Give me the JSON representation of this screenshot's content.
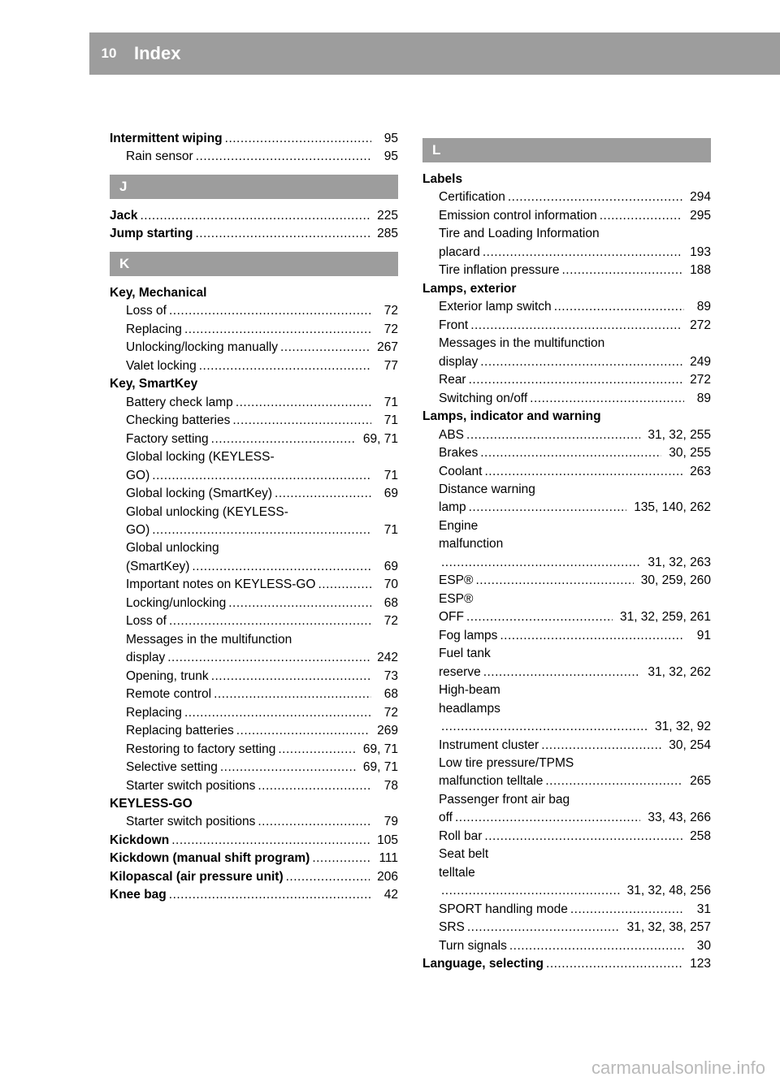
{
  "header": {
    "page_number": "10",
    "title": "Index"
  },
  "watermark": "carmanualsonline.info",
  "left": {
    "top": [
      {
        "bold": true,
        "sub": false,
        "label": "Intermittent wiping",
        "page": "95"
      },
      {
        "bold": false,
        "sub": true,
        "label": "Rain sensor",
        "page": "95"
      }
    ],
    "J": {
      "letter": "J",
      "rows": [
        {
          "bold": true,
          "sub": false,
          "label": "Jack",
          "page": "225"
        },
        {
          "bold": true,
          "sub": false,
          "label": "Jump starting",
          "page": "285"
        }
      ]
    },
    "K": {
      "letter": "K",
      "rows": [
        {
          "bold": true,
          "sub": false,
          "label": "Key, Mechanical",
          "page": ""
        },
        {
          "bold": false,
          "sub": true,
          "label": "Loss of",
          "page": "72"
        },
        {
          "bold": false,
          "sub": true,
          "label": "Replacing",
          "page": "72"
        },
        {
          "bold": false,
          "sub": true,
          "label": "Unlocking/locking manually",
          "page": "267"
        },
        {
          "bold": false,
          "sub": true,
          "label": "Valet locking",
          "page": "77"
        },
        {
          "bold": true,
          "sub": false,
          "label": "Key, SmartKey",
          "page": ""
        },
        {
          "bold": false,
          "sub": true,
          "label": "Battery check lamp",
          "page": "71"
        },
        {
          "bold": false,
          "sub": true,
          "label": "Checking batteries",
          "page": "71"
        },
        {
          "bold": false,
          "sub": true,
          "label": "Factory setting",
          "page": "69, 71"
        },
        {
          "bold": false,
          "sub": true,
          "label": "Global locking (KEYLESS-",
          "page": "",
          "cont": true
        },
        {
          "bold": false,
          "sub": true,
          "label": "GO)",
          "page": "71"
        },
        {
          "bold": false,
          "sub": true,
          "label": "Global locking (SmartKey)",
          "page": "69"
        },
        {
          "bold": false,
          "sub": true,
          "label": "Global unlocking (KEYLESS-",
          "page": "",
          "cont": true
        },
        {
          "bold": false,
          "sub": true,
          "label": "GO)",
          "page": "71"
        },
        {
          "bold": false,
          "sub": true,
          "label": "Global unlocking",
          "page": "",
          "cont": true
        },
        {
          "bold": false,
          "sub": true,
          "label": "(SmartKey)",
          "page": "69"
        },
        {
          "bold": false,
          "sub": true,
          "label": "Important notes on KEYLESS-GO",
          "page": "70"
        },
        {
          "bold": false,
          "sub": true,
          "label": "Locking/unlocking",
          "page": "68"
        },
        {
          "bold": false,
          "sub": true,
          "label": "Loss of",
          "page": "72"
        },
        {
          "bold": false,
          "sub": true,
          "label": "Messages in the multifunction",
          "page": "",
          "cont": true
        },
        {
          "bold": false,
          "sub": true,
          "label": "display",
          "page": "242"
        },
        {
          "bold": false,
          "sub": true,
          "label": "Opening, trunk",
          "page": "73"
        },
        {
          "bold": false,
          "sub": true,
          "label": "Remote control",
          "page": "68"
        },
        {
          "bold": false,
          "sub": true,
          "label": "Replacing",
          "page": "72"
        },
        {
          "bold": false,
          "sub": true,
          "label": "Replacing batteries",
          "page": "269"
        },
        {
          "bold": false,
          "sub": true,
          "label": "Restoring to factory setting",
          "page": "69, 71"
        },
        {
          "bold": false,
          "sub": true,
          "label": "Selective setting",
          "page": "69, 71"
        },
        {
          "bold": false,
          "sub": true,
          "label": "Starter switch positions",
          "page": "78"
        },
        {
          "bold": true,
          "sub": false,
          "label": "KEYLESS-GO",
          "page": ""
        },
        {
          "bold": false,
          "sub": true,
          "label": "Starter switch positions",
          "page": "79"
        },
        {
          "bold": true,
          "sub": false,
          "label": "Kickdown",
          "page": "105"
        },
        {
          "bold": true,
          "sub": false,
          "label": "Kickdown (manual shift program)",
          "page": "111"
        },
        {
          "bold": true,
          "sub": false,
          "label": "Kilopascal (air pressure unit)",
          "page": "206"
        },
        {
          "bold": true,
          "sub": false,
          "label": "Knee bag",
          "page": "42"
        }
      ]
    }
  },
  "right": {
    "L": {
      "letter": "L",
      "rows": [
        {
          "bold": true,
          "sub": false,
          "label": "Labels",
          "page": ""
        },
        {
          "bold": false,
          "sub": true,
          "label": "Certification",
          "page": "294"
        },
        {
          "bold": false,
          "sub": true,
          "label": "Emission control information",
          "page": "295"
        },
        {
          "bold": false,
          "sub": true,
          "label": "Tire and Loading Information",
          "page": "",
          "cont": true
        },
        {
          "bold": false,
          "sub": true,
          "label": "placard",
          "page": "193"
        },
        {
          "bold": false,
          "sub": true,
          "label": "Tire inflation pressure",
          "page": "188"
        },
        {
          "bold": true,
          "sub": false,
          "label": "Lamps, exterior",
          "page": ""
        },
        {
          "bold": false,
          "sub": true,
          "label": "Exterior lamp switch",
          "page": "89"
        },
        {
          "bold": false,
          "sub": true,
          "label": "Front",
          "page": "272"
        },
        {
          "bold": false,
          "sub": true,
          "label": "Messages in the multifunction",
          "page": "",
          "cont": true
        },
        {
          "bold": false,
          "sub": true,
          "label": "display",
          "page": "249"
        },
        {
          "bold": false,
          "sub": true,
          "label": "Rear",
          "page": "272"
        },
        {
          "bold": false,
          "sub": true,
          "label": "Switching on/off",
          "page": "89"
        },
        {
          "bold": true,
          "sub": false,
          "label": "Lamps, indicator and warning",
          "page": ""
        },
        {
          "bold": false,
          "sub": true,
          "label": "ABS",
          "page": "31, 32, 255"
        },
        {
          "bold": false,
          "sub": true,
          "label": "Brakes",
          "page": "30, 255"
        },
        {
          "bold": false,
          "sub": true,
          "label": "Coolant",
          "page": "263"
        },
        {
          "bold": false,
          "sub": true,
          "label": "Distance warning",
          "page": "",
          "cont": true
        },
        {
          "bold": false,
          "sub": true,
          "label": "lamp",
          "page": "135, 140, 262"
        },
        {
          "bold": false,
          "sub": true,
          "label": "Engine",
          "page": "",
          "cont": true
        },
        {
          "bold": false,
          "sub": true,
          "label": "malfunction",
          "page": "",
          "cont": true
        },
        {
          "bold": false,
          "sub": true,
          "label": "",
          "page": "31, 32, 263"
        },
        {
          "bold": false,
          "sub": true,
          "label": "ESP®",
          "page": "30, 259, 260"
        },
        {
          "bold": false,
          "sub": true,
          "label": "ESP®",
          "page": "",
          "cont": true
        },
        {
          "bold": false,
          "sub": true,
          "label": "OFF",
          "page": "31, 32, 259, 261"
        },
        {
          "bold": false,
          "sub": true,
          "label": "Fog lamps",
          "page": "91"
        },
        {
          "bold": false,
          "sub": true,
          "label": "Fuel tank",
          "page": "",
          "cont": true
        },
        {
          "bold": false,
          "sub": true,
          "label": "reserve",
          "page": "31, 32, 262"
        },
        {
          "bold": false,
          "sub": true,
          "label": "High-beam",
          "page": "",
          "cont": true
        },
        {
          "bold": false,
          "sub": true,
          "label": "headlamps",
          "page": "",
          "cont": true
        },
        {
          "bold": false,
          "sub": true,
          "label": "",
          "page": "31, 32, 92"
        },
        {
          "bold": false,
          "sub": true,
          "label": "Instrument cluster",
          "page": "30, 254"
        },
        {
          "bold": false,
          "sub": true,
          "label": "Low tire pressure/TPMS",
          "page": "",
          "cont": true
        },
        {
          "bold": false,
          "sub": true,
          "label": "malfunction telltale",
          "page": "265"
        },
        {
          "bold": false,
          "sub": true,
          "label": "Passenger front air bag",
          "page": "",
          "cont": true
        },
        {
          "bold": false,
          "sub": true,
          "label": "off",
          "page": "33, 43, 266"
        },
        {
          "bold": false,
          "sub": true,
          "label": "Roll bar",
          "page": "258"
        },
        {
          "bold": false,
          "sub": true,
          "label": "Seat belt",
          "page": "",
          "cont": true
        },
        {
          "bold": false,
          "sub": true,
          "label": "telltale",
          "page": "",
          "cont": true
        },
        {
          "bold": false,
          "sub": true,
          "label": "",
          "page": "31, 32, 48, 256"
        },
        {
          "bold": false,
          "sub": true,
          "label": "SPORT handling mode",
          "page": "31"
        },
        {
          "bold": false,
          "sub": true,
          "label": "SRS",
          "page": "31, 32, 38, 257"
        },
        {
          "bold": false,
          "sub": true,
          "label": "Turn signals",
          "page": "30"
        },
        {
          "bold": true,
          "sub": false,
          "label": "Language, selecting",
          "page": "123"
        }
      ]
    }
  }
}
